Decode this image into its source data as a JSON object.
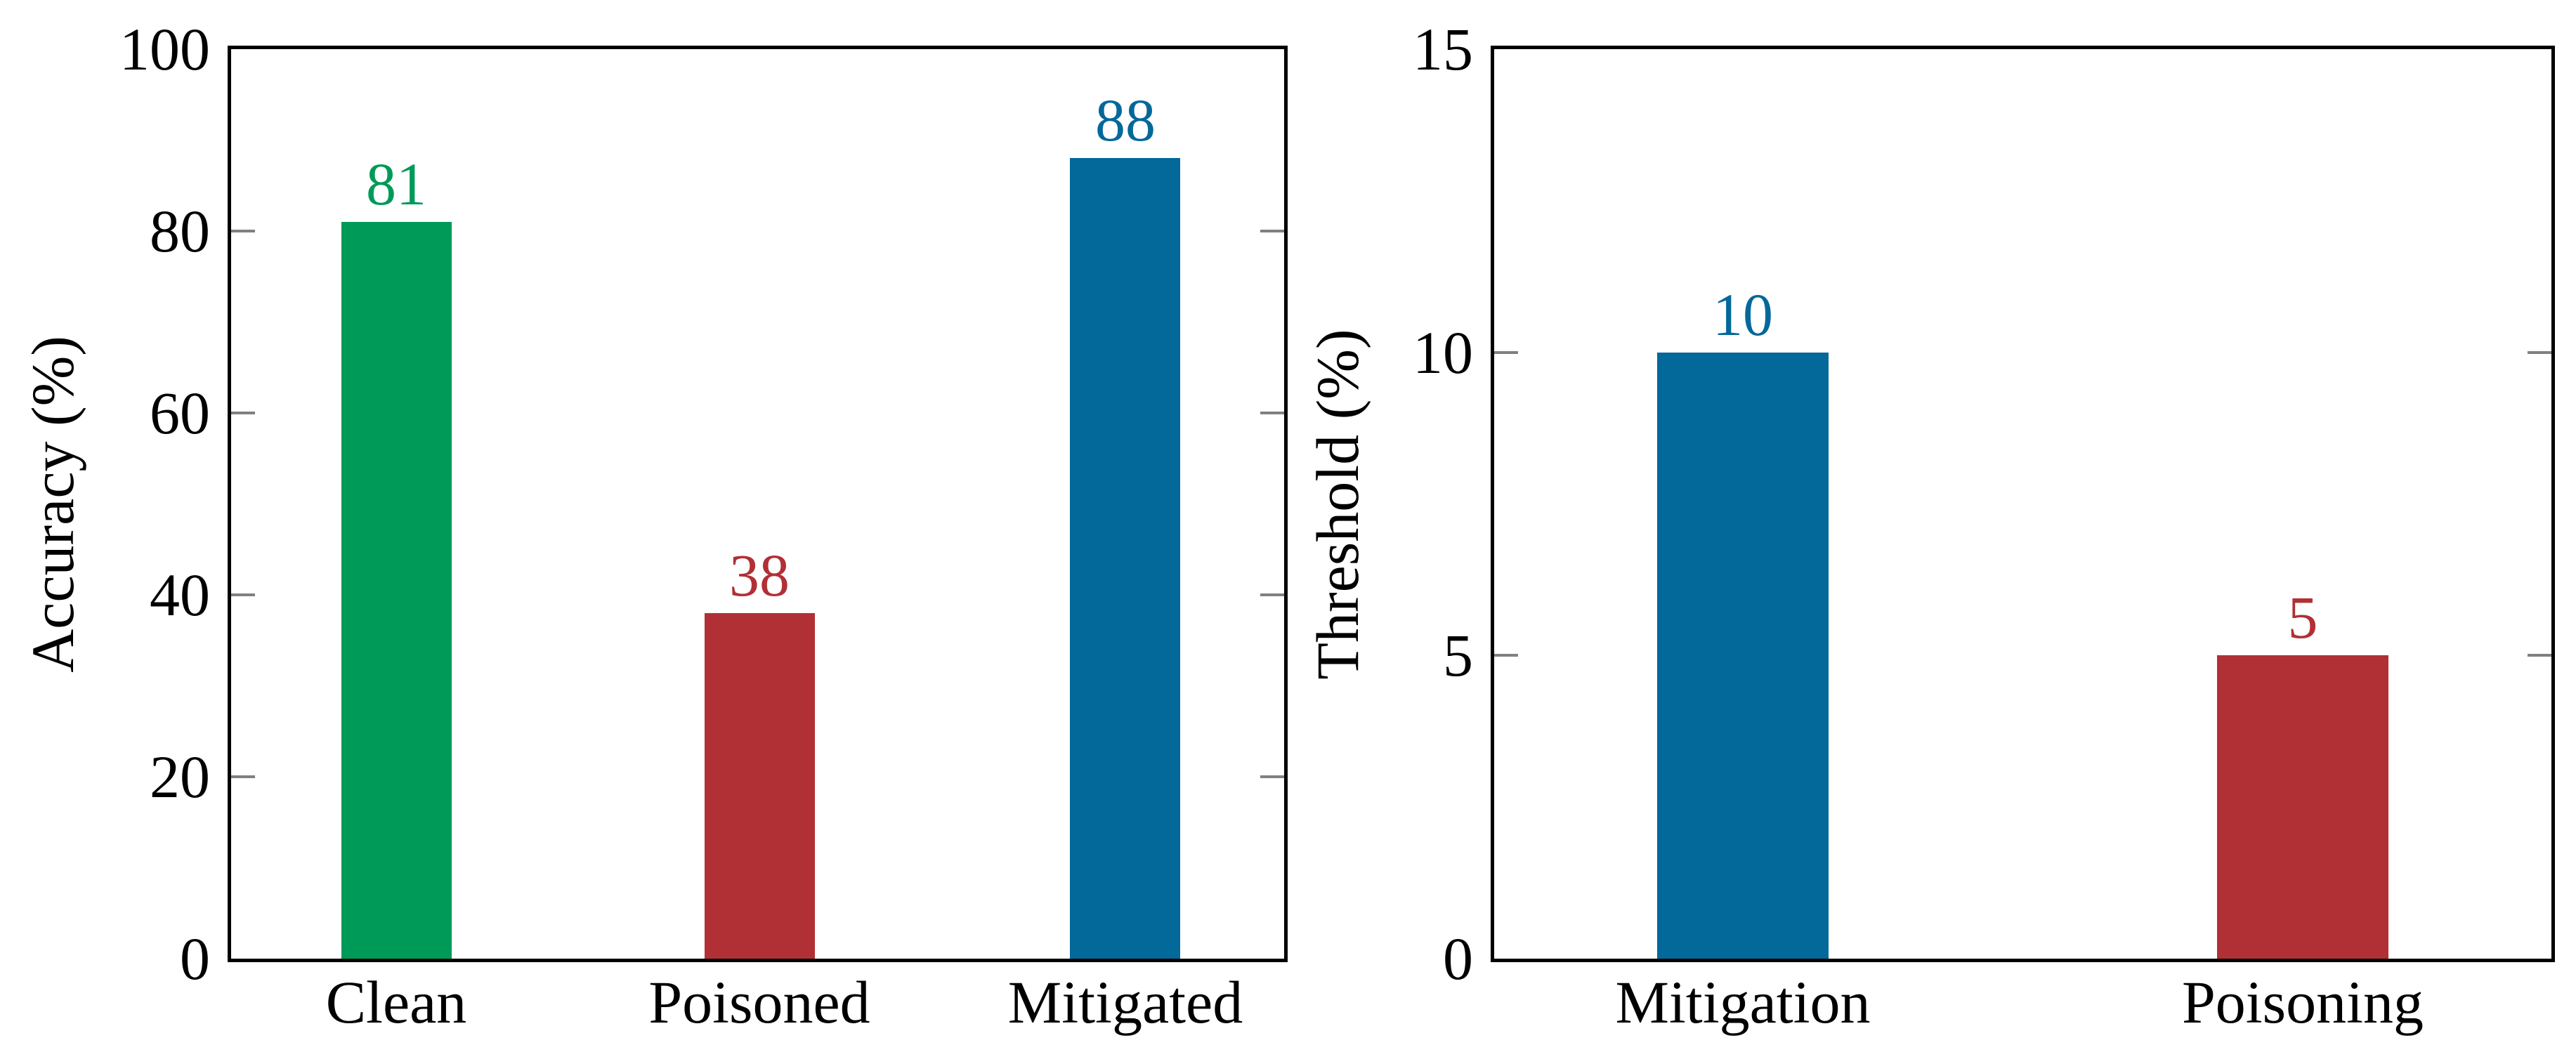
{
  "chart_data": [
    {
      "type": "bar",
      "title": "",
      "xlabel": "",
      "ylabel": "Accuracy (%)",
      "ylim": [
        0,
        100
      ],
      "yticks": [
        "0",
        "20",
        "40",
        "60",
        "80",
        "100"
      ],
      "ytick_values": [
        0,
        20,
        40,
        60,
        80,
        100
      ],
      "grid": false,
      "legend": "none",
      "categories": [
        "Clean",
        "Poisoned",
        "Mitigated"
      ],
      "values": [
        81,
        38,
        88
      ],
      "value_labels": [
        "81",
        "38",
        "88"
      ],
      "bar_colors": [
        "#009a58",
        "#b13035",
        "#03689a"
      ]
    },
    {
      "type": "bar",
      "title": "",
      "xlabel": "",
      "ylabel": "Threshold (%)",
      "ylim": [
        0,
        15
      ],
      "yticks": [
        "0",
        "5",
        "10",
        "15"
      ],
      "ytick_values": [
        0,
        5,
        10,
        15
      ],
      "grid": false,
      "legend": "none",
      "categories": [
        "Mitigation",
        "Poisoning"
      ],
      "values": [
        10,
        5
      ],
      "value_labels": [
        "10",
        "5"
      ],
      "bar_colors": [
        "#03689a",
        "#b13035"
      ]
    }
  ],
  "colors": {
    "axis_frame": "#000000",
    "tick_mark": "#808080",
    "background": "#ffffff",
    "text": "#000000"
  }
}
